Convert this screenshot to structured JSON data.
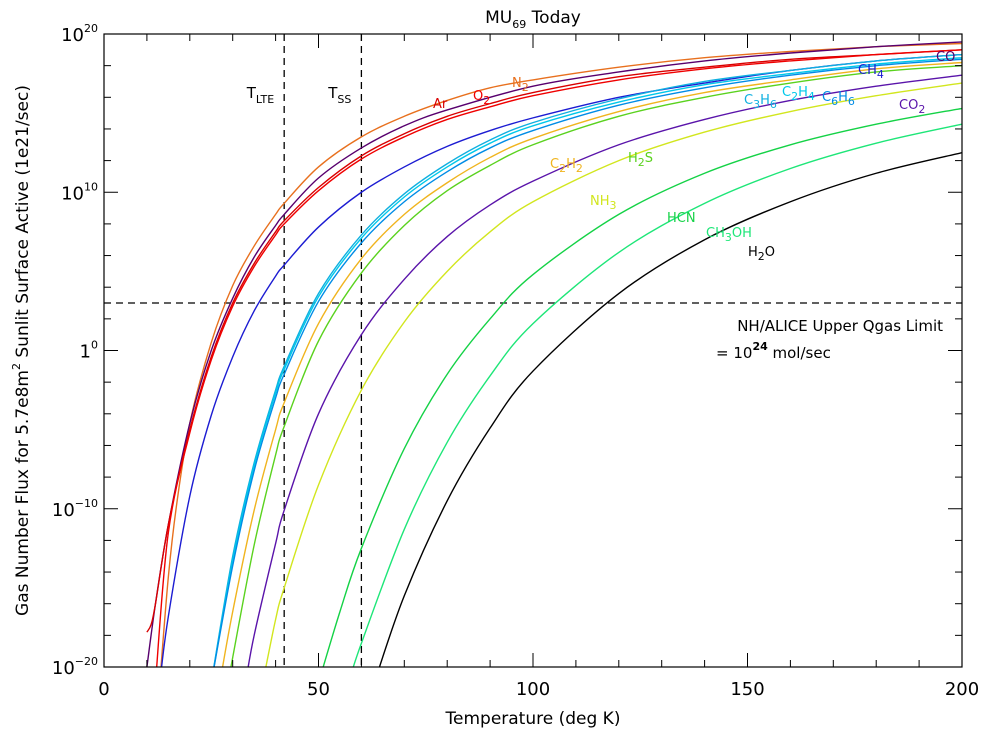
{
  "chart_data": {
    "type": "line",
    "title": {
      "main": "MU",
      "sub": "69",
      "rest": " Today"
    },
    "xlabel": "Temperature (deg K)",
    "ylabel": "Gas Number Flux for 5.7e8m² Sunlit Surface Active (1e21/sec)",
    "ylabel_parts": {
      "a": "Gas Number Flux for 5.7e8m",
      "sup": "2",
      "b": " Sunlit Surface Active (1e21/sec)"
    },
    "xlim": [
      0,
      200
    ],
    "ylim_log10": [
      -21,
      20
    ],
    "yscale": "log",
    "x_ticks": [
      {
        "v": 0,
        "label": "0"
      },
      {
        "v": 50,
        "label": "50"
      },
      {
        "v": 100,
        "label": "100"
      },
      {
        "v": 150,
        "label": "150"
      },
      {
        "v": 200,
        "label": "200"
      }
    ],
    "y_ticks": [
      {
        "v": 20,
        "base": "10",
        "exp": "20"
      },
      {
        "v": 10,
        "base": "10",
        "exp": "10"
      },
      {
        "v": 0,
        "base": "1",
        "exp": "0"
      },
      {
        "v": -10,
        "base": "10",
        "exp": "−10"
      },
      {
        "v": -20,
        "base": "10",
        "exp": "−20"
      }
    ],
    "reference_lines": {
      "T_LTE": {
        "x": 42,
        "label_main": "T",
        "label_sub": "LTE"
      },
      "T_SS": {
        "x": 60,
        "label_main": "T",
        "label_sub": "SS"
      },
      "qgas_limit_log10": 3
    },
    "annotation": {
      "line1": "NH/ALICE Upper Qgas Limit",
      "line2_a": "= 10",
      "line2_sup": "24",
      "line2_b": " mol/sec"
    },
    "series": [
      {
        "name": "N2",
        "label_main": "N",
        "label_sub": "2",
        "color": "#e8701e",
        "points": [
          [
            13,
            -21
          ],
          [
            15,
            -14.3
          ],
          [
            17,
            -9.6
          ],
          [
            20,
            -4.6
          ],
          [
            25,
            0.5
          ],
          [
            30,
            4.1
          ],
          [
            35,
            6.6
          ],
          [
            40,
            8.6
          ],
          [
            42,
            9.3
          ],
          [
            50,
            11.6
          ],
          [
            60,
            13.5
          ],
          [
            70,
            14.8
          ],
          [
            80,
            15.8
          ],
          [
            90,
            16.6
          ],
          [
            100,
            17.1
          ],
          [
            120,
            17.9
          ],
          [
            140,
            18.5
          ],
          [
            160,
            18.9
          ],
          [
            180,
            19.2
          ],
          [
            200,
            19.4
          ]
        ]
      },
      {
        "name": "CO",
        "label_main": "CO",
        "label_sub": "",
        "color": "#58006e",
        "points": [
          [
            10,
            -20
          ],
          [
            12,
            -16
          ],
          [
            15,
            -11
          ],
          [
            20,
            -4.6
          ],
          [
            25,
            0
          ],
          [
            30,
            3.3
          ],
          [
            35,
            5.9
          ],
          [
            40,
            7.9
          ],
          [
            42,
            8.6
          ],
          [
            50,
            10.9
          ],
          [
            60,
            12.8
          ],
          [
            70,
            14.2
          ],
          [
            80,
            15.2
          ],
          [
            100,
            16.7
          ],
          [
            120,
            17.6
          ],
          [
            140,
            18.3
          ],
          [
            160,
            18.8
          ],
          [
            180,
            19.2
          ],
          [
            200,
            19.5
          ]
        ]
      },
      {
        "name": "Ar",
        "label_main": "Ar",
        "label_sub": "",
        "color": "#d80000",
        "points": [
          [
            10,
            -17.8
          ],
          [
            11,
            -17.3
          ],
          [
            12,
            -16
          ],
          [
            15,
            -11
          ],
          [
            20,
            -5
          ],
          [
            25,
            -0.4
          ],
          [
            30,
            3
          ],
          [
            35,
            5.5
          ],
          [
            40,
            7.5
          ],
          [
            42,
            8.2
          ],
          [
            50,
            10.3
          ],
          [
            60,
            12.3
          ],
          [
            70,
            13.7
          ],
          [
            80,
            14.8
          ],
          [
            90,
            15.6
          ],
          [
            100,
            16.3
          ],
          [
            120,
            17.3
          ],
          [
            140,
            17.9
          ],
          [
            160,
            18.4
          ],
          [
            180,
            18.7
          ],
          [
            200,
            19
          ]
        ]
      },
      {
        "name": "O2",
        "label_main": "O",
        "label_sub": "2",
        "color": "#f00000",
        "points": [
          [
            12,
            -21
          ],
          [
            15,
            -11.5
          ],
          [
            20,
            -5.2
          ],
          [
            25,
            -0.6
          ],
          [
            30,
            2.8
          ],
          [
            35,
            5.3
          ],
          [
            40,
            7.3
          ],
          [
            42,
            8
          ],
          [
            50,
            10.1
          ],
          [
            60,
            12.1
          ],
          [
            70,
            13.5
          ],
          [
            80,
            14.6
          ],
          [
            90,
            15.4
          ],
          [
            100,
            16.1
          ],
          [
            120,
            17.1
          ],
          [
            140,
            17.8
          ],
          [
            160,
            18.3
          ],
          [
            180,
            18.7
          ],
          [
            200,
            19
          ]
        ]
      },
      {
        "name": "CH4",
        "label_main": "CH",
        "label_sub": "4",
        "color": "#1c1cd2",
        "points": [
          [
            13,
            -21
          ],
          [
            15,
            -16.8
          ],
          [
            20,
            -9.2
          ],
          [
            25,
            -4.1
          ],
          [
            30,
            -0.4
          ],
          [
            35,
            2.5
          ],
          [
            40,
            4.7
          ],
          [
            42,
            5.4
          ],
          [
            50,
            7.8
          ],
          [
            60,
            10
          ],
          [
            70,
            11.6
          ],
          [
            80,
            12.9
          ],
          [
            90,
            13.9
          ],
          [
            100,
            14.7
          ],
          [
            120,
            16
          ],
          [
            140,
            16.9
          ],
          [
            160,
            17.7
          ],
          [
            180,
            18.3
          ],
          [
            200,
            18.7
          ]
        ]
      },
      {
        "name": "C3H6",
        "label_main": "C",
        "label_sub": "3",
        "label_main2": "H",
        "label_sub2": "6",
        "color": "#0fb0e0",
        "points": [
          [
            25,
            -21
          ],
          [
            30,
            -13
          ],
          [
            35,
            -7.1
          ],
          [
            40,
            -2.5
          ],
          [
            42,
            -1
          ],
          [
            50,
            3.6
          ],
          [
            60,
            7.3
          ],
          [
            70,
            9.9
          ],
          [
            80,
            11.8
          ],
          [
            90,
            13.3
          ],
          [
            100,
            14.4
          ],
          [
            120,
            15.9
          ],
          [
            140,
            17
          ],
          [
            160,
            17.7
          ],
          [
            180,
            18.3
          ],
          [
            200,
            18.7
          ]
        ]
      },
      {
        "name": "C2H4",
        "label_main": "C",
        "label_sub": "2",
        "label_main2": "H",
        "label_sub2": "4",
        "color": "#00c8ea",
        "points": [
          [
            25,
            -21
          ],
          [
            30,
            -13.3
          ],
          [
            35,
            -7.3
          ],
          [
            40,
            -2.7
          ],
          [
            42,
            -1.2
          ],
          [
            50,
            3.4
          ],
          [
            60,
            7.1
          ],
          [
            70,
            9.7
          ],
          [
            80,
            11.6
          ],
          [
            90,
            13.1
          ],
          [
            100,
            14.2
          ],
          [
            120,
            15.7
          ],
          [
            140,
            16.8
          ],
          [
            160,
            17.5
          ],
          [
            180,
            18.1
          ],
          [
            200,
            18.5
          ]
        ]
      },
      {
        "name": "C6H6",
        "label_main": "C",
        "label_sub": "6",
        "label_main2": "H",
        "label_sub2": "6",
        "color": "#008ce6",
        "points": [
          [
            25,
            -21
          ],
          [
            30,
            -13.6
          ],
          [
            35,
            -7.6
          ],
          [
            40,
            -3
          ],
          [
            42,
            -1.5
          ],
          [
            50,
            3.1
          ],
          [
            60,
            6.8
          ],
          [
            70,
            9.4
          ],
          [
            80,
            11.3
          ],
          [
            90,
            12.8
          ],
          [
            100,
            13.9
          ],
          [
            120,
            15.5
          ],
          [
            140,
            16.6
          ],
          [
            160,
            17.4
          ],
          [
            180,
            18
          ],
          [
            200,
            18.4
          ]
        ]
      },
      {
        "name": "C2H2",
        "label_main": "C",
        "label_sub": "2",
        "label_main2": "H",
        "label_sub2": "2",
        "color": "#f0b41e",
        "points": [
          [
            27,
            -21
          ],
          [
            30,
            -16.5
          ],
          [
            35,
            -10.1
          ],
          [
            40,
            -5
          ],
          [
            42,
            -3.3
          ],
          [
            50,
            1.7
          ],
          [
            60,
            5.8
          ],
          [
            70,
            8.6
          ],
          [
            80,
            10.6
          ],
          [
            90,
            12.2
          ],
          [
            100,
            13.4
          ],
          [
            120,
            15.1
          ],
          [
            140,
            16.3
          ],
          [
            160,
            17.1
          ],
          [
            180,
            17.8
          ],
          [
            200,
            18.2
          ]
        ]
      },
      {
        "name": "H2S",
        "label_main": "H",
        "label_sub": "2",
        "label_main2": "S",
        "label_sub2": "",
        "color": "#5ad21e",
        "points": [
          [
            29,
            -21
          ],
          [
            30,
            -19.4
          ],
          [
            35,
            -12.3
          ],
          [
            40,
            -6.6
          ],
          [
            42,
            -4.8
          ],
          [
            50,
            0.6
          ],
          [
            60,
            4.9
          ],
          [
            70,
            7.9
          ],
          [
            80,
            10.1
          ],
          [
            90,
            11.7
          ],
          [
            100,
            13
          ],
          [
            120,
            14.8
          ],
          [
            140,
            16
          ],
          [
            160,
            16.9
          ],
          [
            180,
            17.6
          ],
          [
            200,
            18
          ]
        ]
      },
      {
        "name": "CO2",
        "label_main": "CO",
        "label_sub": "2",
        "color": "#5a14aa",
        "points": [
          [
            33,
            -21
          ],
          [
            35,
            -18
          ],
          [
            40,
            -12.2
          ],
          [
            42,
            -10.1
          ],
          [
            50,
            -4
          ],
          [
            60,
            1
          ],
          [
            70,
            4.5
          ],
          [
            80,
            7.2
          ],
          [
            90,
            9.2
          ],
          [
            100,
            10.7
          ],
          [
            120,
            13
          ],
          [
            140,
            14.6
          ],
          [
            160,
            15.8
          ],
          [
            180,
            16.7
          ],
          [
            200,
            17.4
          ]
        ]
      },
      {
        "name": "NH3",
        "label_main": "NH",
        "label_sub": "3",
        "color": "#d2e61e",
        "points": [
          [
            37,
            -21
          ],
          [
            40,
            -17
          ],
          [
            42,
            -15
          ],
          [
            50,
            -8.5
          ],
          [
            60,
            -2.5
          ],
          [
            70,
            1.8
          ],
          [
            80,
            5
          ],
          [
            90,
            7.5
          ],
          [
            100,
            9.4
          ],
          [
            120,
            12
          ],
          [
            140,
            13.8
          ],
          [
            160,
            15.1
          ],
          [
            180,
            16.1
          ],
          [
            200,
            16.9
          ]
        ]
      },
      {
        "name": "HCN",
        "label_main": "HCN",
        "label_sub": "",
        "color": "#14d246",
        "points": [
          [
            50,
            -21
          ],
          [
            55,
            -16.5
          ],
          [
            60,
            -12.5
          ],
          [
            70,
            -6.2
          ],
          [
            80,
            -1.5
          ],
          [
            90,
            2
          ],
          [
            100,
            4.8
          ],
          [
            120,
            8.6
          ],
          [
            140,
            11.2
          ],
          [
            160,
            13
          ],
          [
            180,
            14.3
          ],
          [
            200,
            15.3
          ]
        ]
      },
      {
        "name": "CH3OH",
        "label_main": "CH",
        "label_sub": "3",
        "label_main2": "OH",
        "label_sub2": "",
        "color": "#1ee678",
        "points": [
          [
            57,
            -21
          ],
          [
            60,
            -18.5
          ],
          [
            70,
            -11.3
          ],
          [
            80,
            -5.8
          ],
          [
            90,
            -1.6
          ],
          [
            100,
            1.7
          ],
          [
            120,
            6.2
          ],
          [
            140,
            9.3
          ],
          [
            160,
            11.5
          ],
          [
            180,
            13.1
          ],
          [
            200,
            14.3
          ]
        ]
      },
      {
        "name": "H2O",
        "label_main": "H",
        "label_sub": "2",
        "label_main2": "O",
        "label_sub2": "",
        "color": "#000000",
        "points": [
          [
            63,
            -21
          ],
          [
            70,
            -15.5
          ],
          [
            80,
            -9.5
          ],
          [
            90,
            -4.9
          ],
          [
            100,
            -1.3
          ],
          [
            120,
            3.6
          ],
          [
            140,
            7
          ],
          [
            160,
            9.4
          ],
          [
            180,
            11.2
          ],
          [
            200,
            12.5
          ]
        ]
      }
    ]
  }
}
